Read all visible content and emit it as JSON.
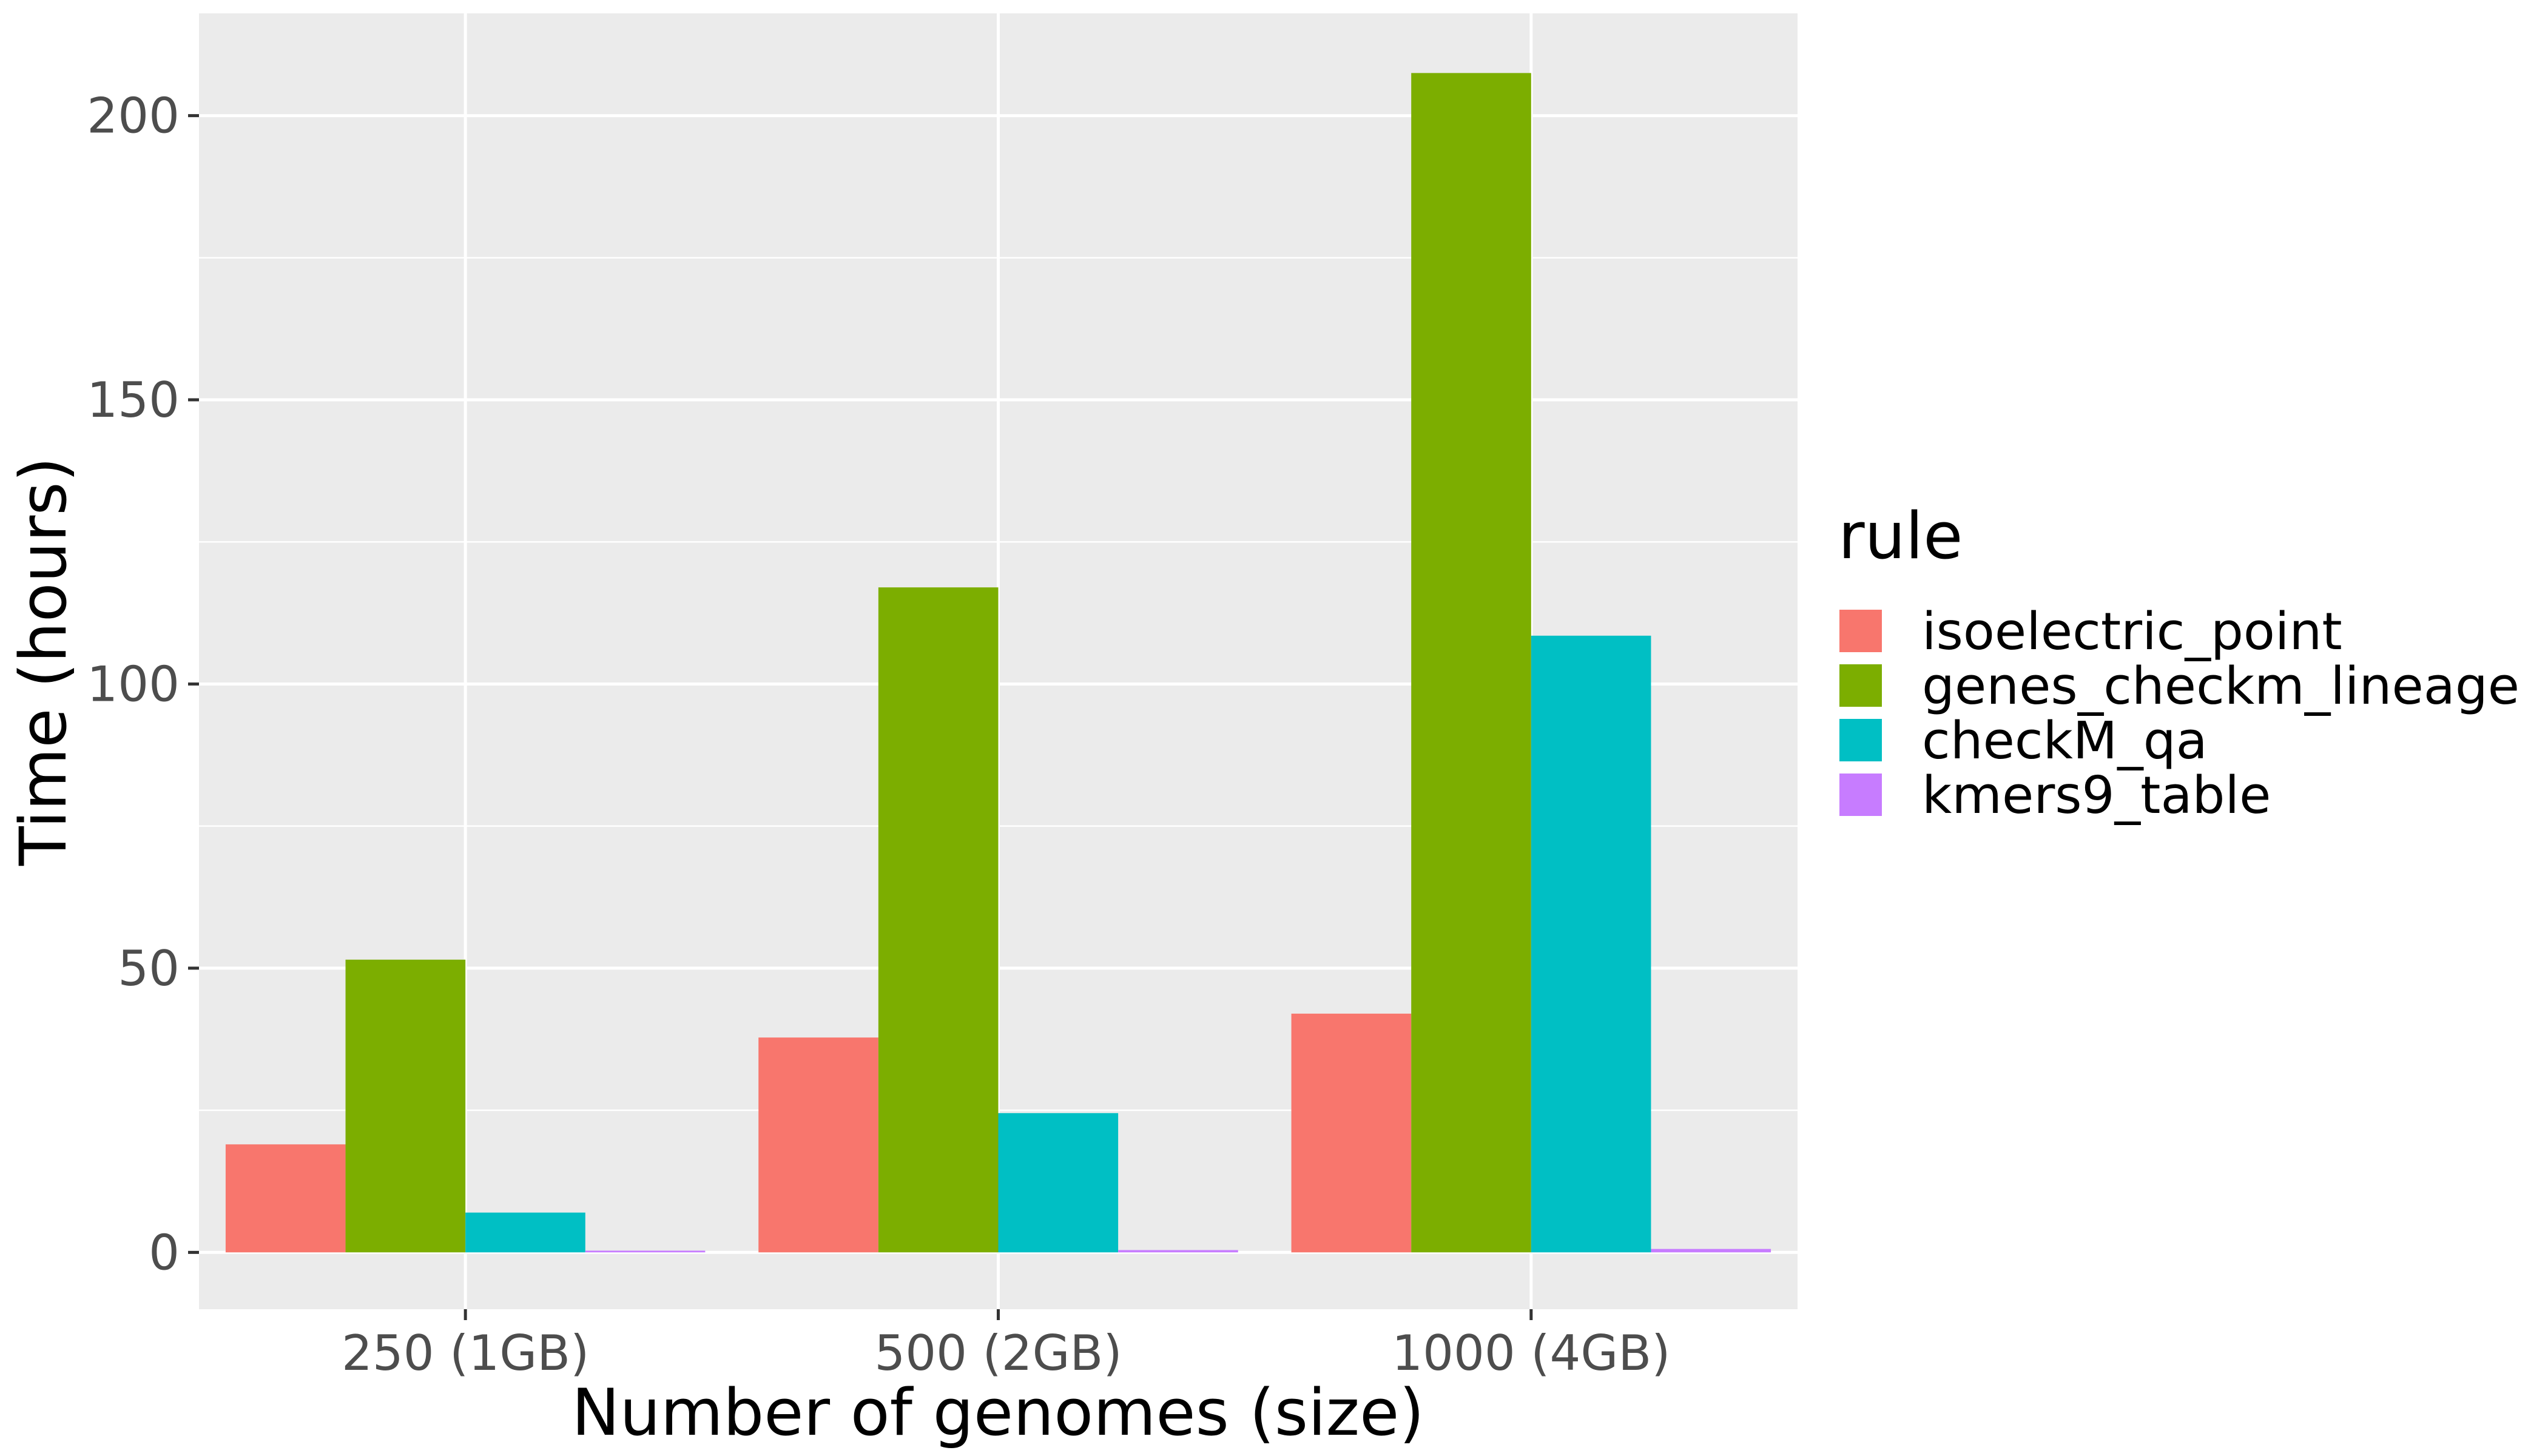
{
  "chart_data": {
    "type": "bar",
    "xlabel": "Number of genomes (size)",
    "ylabel": "Time (hours)",
    "categories": [
      "250 (1GB)",
      "500 (2GB)",
      "1000 (4GB)"
    ],
    "ylim": [
      -10,
      218
    ],
    "yticks": [
      0,
      50,
      100,
      150,
      200
    ],
    "grid": true,
    "legend": {
      "title": "rule",
      "position": "right"
    },
    "series": [
      {
        "name": "isoelectric_point",
        "color": "#F8766D",
        "values": [
          19,
          37.8,
          42
        ]
      },
      {
        "name": "genes_checkm_lineage",
        "color": "#7CAE00",
        "values": [
          51.5,
          117,
          207.5
        ]
      },
      {
        "name": "checkM_qa",
        "color": "#00BFC4",
        "values": [
          7,
          24.5,
          108.5
        ]
      },
      {
        "name": "kmers9_table",
        "color": "#C77CFF",
        "values": [
          0.3,
          0.4,
          0.6
        ]
      }
    ]
  }
}
